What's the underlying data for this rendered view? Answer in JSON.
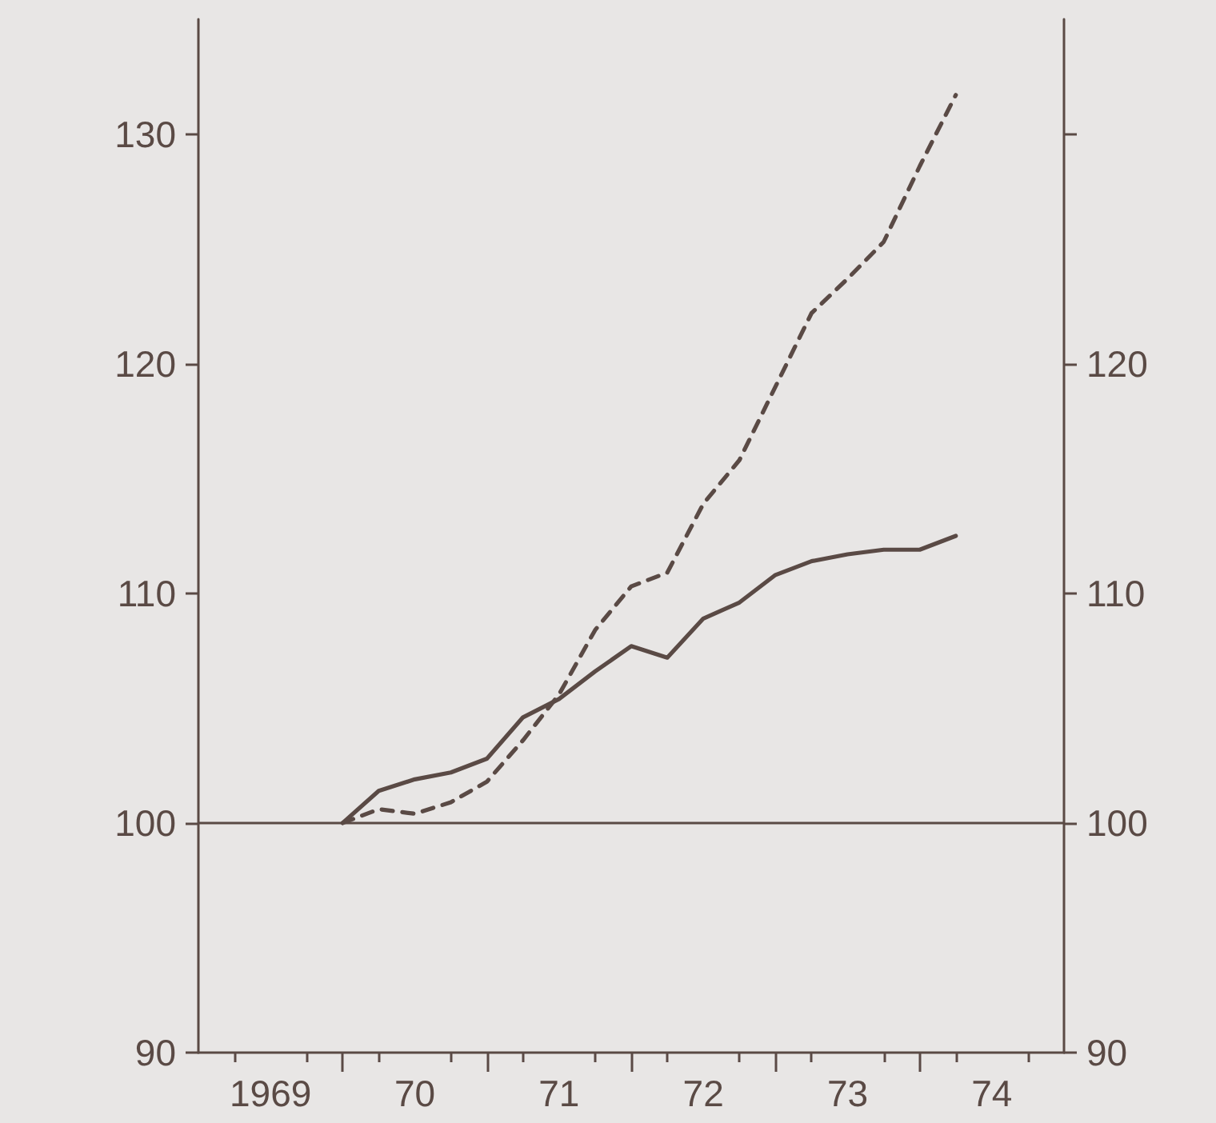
{
  "chart_data": {
    "type": "line",
    "x": [
      "1970-01",
      "1970-04",
      "1970-07",
      "1970-10",
      "1971-01",
      "1971-04",
      "1971-07",
      "1971-10",
      "1972-01",
      "1972-04",
      "1972-07",
      "1972-10",
      "1973-01",
      "1973-04",
      "1973-07",
      "1973-10",
      "1974-01",
      "1974-04"
    ],
    "series": [
      {
        "color": "#5a4a45",
        "line_style": "solid",
        "values": [
          100,
          101.4,
          101.9,
          102.2,
          102.8,
          104.6,
          105.4,
          106.6,
          107.7,
          107.2,
          108.9,
          109.6,
          110.8,
          111.4,
          111.7,
          111.9,
          111.9,
          112.5
        ]
      },
      {
        "color": "#5a4a45",
        "line_style": "dashed",
        "values": [
          100,
          100.6,
          100.4,
          100.9,
          101.8,
          103.6,
          105.6,
          108.4,
          110.3,
          110.9,
          113.9,
          115.8,
          119,
          122.2,
          123.7,
          125.3,
          128.6,
          131.7
        ]
      }
    ],
    "xlim": [
      "1969-01",
      "1975-01"
    ],
    "xticks": [
      {
        "value": "1969-04",
        "label": null
      },
      {
        "value": "1969-07",
        "label": "1969"
      },
      {
        "value": "1969-10",
        "label": null
      },
      {
        "value": "1970-01",
        "label": null
      },
      {
        "value": "1970-04",
        "label": null
      },
      {
        "value": "1970-07",
        "label": "70"
      },
      {
        "value": "1970-10",
        "label": null
      },
      {
        "value": "1971-01",
        "label": null
      },
      {
        "value": "1971-04",
        "label": null
      },
      {
        "value": "1971-07",
        "label": "71"
      },
      {
        "value": "1971-10",
        "label": null
      },
      {
        "value": "1972-01",
        "label": null
      },
      {
        "value": "1972-04",
        "label": null
      },
      {
        "value": "1972-07",
        "label": "72"
      },
      {
        "value": "1972-10",
        "label": null
      },
      {
        "value": "1973-01",
        "label": null
      },
      {
        "value": "1973-04",
        "label": null
      },
      {
        "value": "1973-07",
        "label": "73"
      },
      {
        "value": "1973-10",
        "label": null
      },
      {
        "value": "1974-01",
        "label": null
      },
      {
        "value": "1974-04",
        "label": null
      },
      {
        "value": "1974-07",
        "label": "74"
      },
      {
        "value": "1974-10",
        "label": null
      }
    ],
    "ylim": [
      90,
      135
    ],
    "yticks": [
      90,
      100,
      110,
      120,
      130
    ],
    "y2lim": [
      90,
      135
    ],
    "y2ticks": [
      90,
      100,
      110,
      120,
      {
        "value": 130,
        "label": null
      }
    ],
    "ref_lines": [
      {
        "axis": "y",
        "value": 100,
        "color": "#5a4a45",
        "line_style": "solid"
      }
    ],
    "grid": false,
    "marker": "none"
  }
}
